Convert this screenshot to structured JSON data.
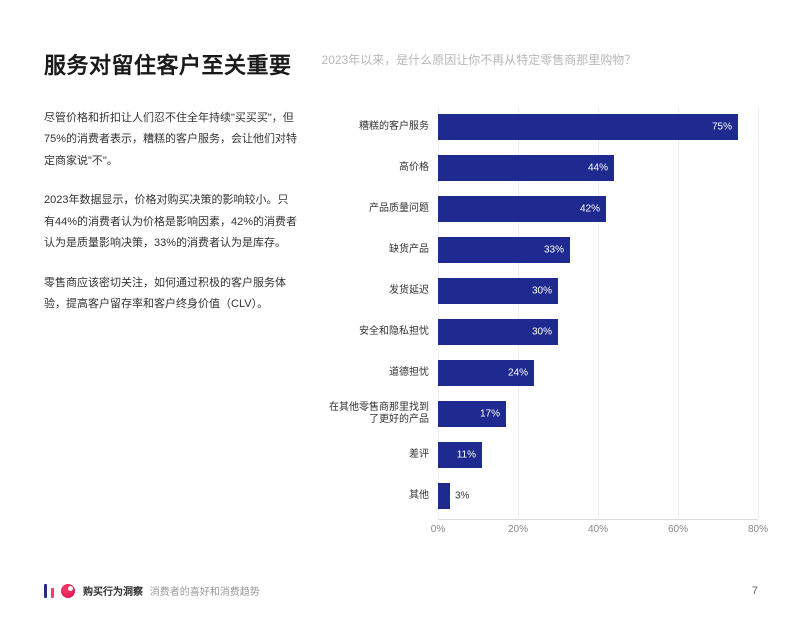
{
  "title": "服务对留住客户至关重要",
  "subtitle": "2023年以来，是什么原因让你不再从特定零售商那里购物？",
  "paragraphs": [
    "尽管价格和折扣让人们忍不住全年持续\"买买买\"，但75%的消费者表示，糟糕的客户服务，会让他们对特定商家说\"不\"。",
    "2023年数据显示，价格对购买决策的影响较小。只有44%的消费者认为价格是影响因素，42%的消费者认为是质量影响决策，33%的消费者认为是库存。",
    "零售商应该密切关注，如何通过积极的客户服务体验，提高客户留存率和客户终身价值（CLV）。"
  ],
  "chart": {
    "type": "bar",
    "bar_color": "#1e2a8f",
    "background_color": "#ffffff",
    "grid_color": "#eeeeee",
    "axis_color": "#dddddd",
    "label_color": "#333333",
    "value_color_inside": "#ffffff",
    "value_color_outside": "#333333",
    "label_fontsize": 10,
    "value_fontsize": 10,
    "xmax": 80,
    "xticks": [
      0,
      20,
      40,
      60,
      80
    ],
    "xtick_labels": [
      "0%",
      "20%",
      "40%",
      "60%",
      "80%"
    ],
    "items": [
      {
        "label": "糟糕的客户服务",
        "value": 75,
        "display": "75%"
      },
      {
        "label": "高价格",
        "value": 44,
        "display": "44%"
      },
      {
        "label": "产品质量问题",
        "value": 42,
        "display": "42%"
      },
      {
        "label": "缺货产品",
        "value": 33,
        "display": "33%"
      },
      {
        "label": "发货延迟",
        "value": 30,
        "display": "30%"
      },
      {
        "label": "安全和隐私担忧",
        "value": 30,
        "display": "30%"
      },
      {
        "label": "道德担忧",
        "value": 24,
        "display": "24%"
      },
      {
        "label": "在其他零售商那里找到了更好的产品",
        "value": 17,
        "display": "17%"
      },
      {
        "label": "差评",
        "value": 11,
        "display": "11%"
      },
      {
        "label": "其他",
        "value": 3,
        "display": "3%"
      }
    ]
  },
  "footer": {
    "brand": "购买行为洞察",
    "tagline": "消费者的喜好和消费趋势",
    "page_number": "7"
  }
}
